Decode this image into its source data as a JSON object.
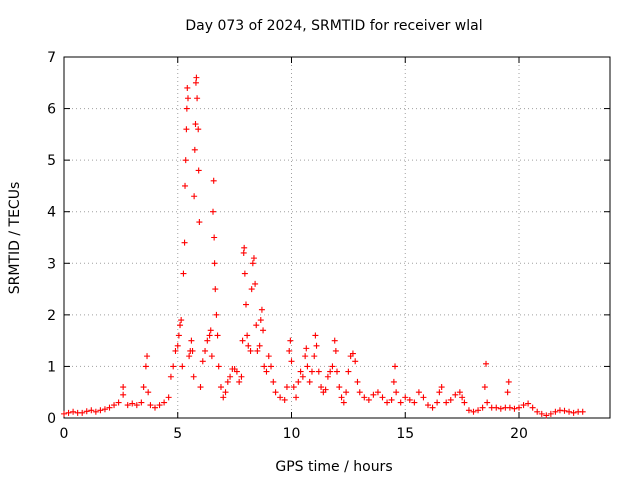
{
  "chart_data": {
    "type": "scatter",
    "title": "Day 073 of 2024, SRMTID for receiver wlal",
    "xlabel": "GPS time / hours",
    "ylabel": "SRMTID / TECUs",
    "xlim": [
      0,
      24
    ],
    "ylim": [
      0,
      7
    ],
    "xticks": [
      0,
      5,
      10,
      15,
      20
    ],
    "xtick_labels": [
      "0",
      "5",
      "10",
      "15",
      "20"
    ],
    "yticks": [
      0,
      1,
      2,
      3,
      4,
      5,
      6,
      7
    ],
    "ytick_labels": [
      "0",
      "1",
      "2",
      "3",
      "4",
      "5",
      "6",
      "7"
    ],
    "grid": true,
    "marker": "+",
    "series": [
      {
        "name": "SRMTID",
        "color": "#ff0000",
        "points": [
          [
            0.0,
            0.08
          ],
          [
            0.2,
            0.1
          ],
          [
            0.4,
            0.12
          ],
          [
            0.6,
            0.1
          ],
          [
            0.8,
            0.1
          ],
          [
            1.0,
            0.13
          ],
          [
            1.2,
            0.15
          ],
          [
            1.4,
            0.12
          ],
          [
            1.6,
            0.15
          ],
          [
            1.8,
            0.17
          ],
          [
            2.0,
            0.2
          ],
          [
            2.2,
            0.25
          ],
          [
            2.4,
            0.3
          ],
          [
            2.6,
            0.45
          ],
          [
            2.6,
            0.6
          ],
          [
            2.8,
            0.25
          ],
          [
            3.0,
            0.28
          ],
          [
            3.2,
            0.25
          ],
          [
            3.4,
            0.3
          ],
          [
            3.5,
            0.6
          ],
          [
            3.6,
            1.0
          ],
          [
            3.65,
            1.2
          ],
          [
            3.7,
            0.5
          ],
          [
            3.8,
            0.25
          ],
          [
            4.0,
            0.2
          ],
          [
            4.2,
            0.25
          ],
          [
            4.4,
            0.3
          ],
          [
            4.6,
            0.4
          ],
          [
            4.7,
            0.8
          ],
          [
            4.8,
            1.0
          ],
          [
            4.9,
            1.3
          ],
          [
            5.0,
            1.4
          ],
          [
            5.05,
            1.6
          ],
          [
            5.1,
            1.8
          ],
          [
            5.15,
            1.9
          ],
          [
            5.2,
            1.0
          ],
          [
            5.25,
            2.8
          ],
          [
            5.3,
            3.4
          ],
          [
            5.32,
            4.5
          ],
          [
            5.35,
            5.0
          ],
          [
            5.38,
            5.6
          ],
          [
            5.4,
            6.0
          ],
          [
            5.42,
            6.4
          ],
          [
            5.45,
            6.2
          ],
          [
            5.5,
            1.2
          ],
          [
            5.55,
            1.3
          ],
          [
            5.6,
            1.5
          ],
          [
            5.65,
            1.3
          ],
          [
            5.7,
            0.8
          ],
          [
            5.72,
            4.3
          ],
          [
            5.75,
            5.2
          ],
          [
            5.78,
            5.7
          ],
          [
            5.8,
            6.5
          ],
          [
            5.82,
            6.6
          ],
          [
            5.85,
            6.2
          ],
          [
            5.9,
            5.6
          ],
          [
            5.92,
            4.8
          ],
          [
            5.95,
            3.8
          ],
          [
            6.0,
            0.6
          ],
          [
            6.1,
            1.1
          ],
          [
            6.2,
            1.3
          ],
          [
            6.3,
            1.5
          ],
          [
            6.4,
            1.6
          ],
          [
            6.45,
            1.7
          ],
          [
            6.5,
            1.2
          ],
          [
            6.55,
            4.0
          ],
          [
            6.58,
            4.6
          ],
          [
            6.6,
            3.5
          ],
          [
            6.62,
            3.0
          ],
          [
            6.65,
            2.5
          ],
          [
            6.7,
            2.0
          ],
          [
            6.75,
            1.6
          ],
          [
            6.8,
            1.0
          ],
          [
            6.9,
            0.6
          ],
          [
            7.0,
            0.4
          ],
          [
            7.1,
            0.5
          ],
          [
            7.2,
            0.7
          ],
          [
            7.3,
            0.8
          ],
          [
            7.4,
            0.95
          ],
          [
            7.5,
            0.95
          ],
          [
            7.6,
            0.9
          ],
          [
            7.7,
            0.7
          ],
          [
            7.8,
            0.8
          ],
          [
            7.85,
            1.5
          ],
          [
            7.9,
            3.2
          ],
          [
            7.92,
            3.3
          ],
          [
            7.95,
            2.8
          ],
          [
            8.0,
            2.2
          ],
          [
            8.05,
            1.6
          ],
          [
            8.1,
            1.4
          ],
          [
            8.2,
            1.3
          ],
          [
            8.25,
            2.5
          ],
          [
            8.3,
            3.0
          ],
          [
            8.35,
            3.1
          ],
          [
            8.4,
            2.6
          ],
          [
            8.45,
            1.8
          ],
          [
            8.5,
            1.3
          ],
          [
            8.6,
            1.4
          ],
          [
            8.65,
            1.9
          ],
          [
            8.7,
            2.1
          ],
          [
            8.75,
            1.7
          ],
          [
            8.8,
            1.0
          ],
          [
            8.9,
            0.9
          ],
          [
            9.0,
            1.2
          ],
          [
            9.1,
            1.0
          ],
          [
            9.2,
            0.7
          ],
          [
            9.3,
            0.5
          ],
          [
            9.5,
            0.4
          ],
          [
            9.7,
            0.35
          ],
          [
            9.8,
            0.6
          ],
          [
            9.9,
            1.3
          ],
          [
            9.95,
            1.5
          ],
          [
            10.0,
            1.1
          ],
          [
            10.1,
            0.6
          ],
          [
            10.2,
            0.4
          ],
          [
            10.3,
            0.7
          ],
          [
            10.4,
            0.9
          ],
          [
            10.5,
            0.8
          ],
          [
            10.6,
            1.2
          ],
          [
            10.65,
            1.35
          ],
          [
            10.7,
            1.0
          ],
          [
            10.8,
            0.7
          ],
          [
            10.9,
            0.9
          ],
          [
            11.0,
            1.2
          ],
          [
            11.05,
            1.6
          ],
          [
            11.1,
            1.4
          ],
          [
            11.2,
            0.9
          ],
          [
            11.3,
            0.6
          ],
          [
            11.4,
            0.5
          ],
          [
            11.5,
            0.55
          ],
          [
            11.6,
            0.8
          ],
          [
            11.7,
            0.9
          ],
          [
            11.8,
            1.0
          ],
          [
            11.9,
            1.5
          ],
          [
            11.95,
            1.3
          ],
          [
            12.0,
            0.9
          ],
          [
            12.1,
            0.6
          ],
          [
            12.2,
            0.4
          ],
          [
            12.3,
            0.3
          ],
          [
            12.4,
            0.5
          ],
          [
            12.5,
            0.9
          ],
          [
            12.6,
            1.2
          ],
          [
            12.7,
            1.25
          ],
          [
            12.8,
            1.1
          ],
          [
            12.9,
            0.7
          ],
          [
            13.0,
            0.5
          ],
          [
            13.2,
            0.4
          ],
          [
            13.4,
            0.35
          ],
          [
            13.6,
            0.45
          ],
          [
            13.8,
            0.5
          ],
          [
            14.0,
            0.4
          ],
          [
            14.2,
            0.3
          ],
          [
            14.4,
            0.35
          ],
          [
            14.5,
            0.7
          ],
          [
            14.55,
            1.0
          ],
          [
            14.6,
            0.5
          ],
          [
            14.8,
            0.3
          ],
          [
            15.0,
            0.4
          ],
          [
            15.2,
            0.35
          ],
          [
            15.4,
            0.3
          ],
          [
            15.6,
            0.5
          ],
          [
            15.8,
            0.4
          ],
          [
            16.0,
            0.25
          ],
          [
            16.2,
            0.2
          ],
          [
            16.4,
            0.3
          ],
          [
            16.5,
            0.5
          ],
          [
            16.6,
            0.6
          ],
          [
            16.8,
            0.3
          ],
          [
            17.0,
            0.35
          ],
          [
            17.2,
            0.45
          ],
          [
            17.4,
            0.5
          ],
          [
            17.5,
            0.4
          ],
          [
            17.6,
            0.3
          ],
          [
            17.8,
            0.15
          ],
          [
            18.0,
            0.12
          ],
          [
            18.2,
            0.15
          ],
          [
            18.4,
            0.2
          ],
          [
            18.5,
            0.6
          ],
          [
            18.55,
            1.05
          ],
          [
            18.6,
            0.3
          ],
          [
            18.8,
            0.2
          ],
          [
            19.0,
            0.2
          ],
          [
            19.2,
            0.18
          ],
          [
            19.4,
            0.2
          ],
          [
            19.5,
            0.5
          ],
          [
            19.55,
            0.7
          ],
          [
            19.6,
            0.2
          ],
          [
            19.8,
            0.18
          ],
          [
            20.0,
            0.2
          ],
          [
            20.2,
            0.25
          ],
          [
            20.4,
            0.28
          ],
          [
            20.6,
            0.2
          ],
          [
            20.8,
            0.12
          ],
          [
            21.0,
            0.08
          ],
          [
            21.2,
            0.05
          ],
          [
            21.4,
            0.08
          ],
          [
            21.6,
            0.12
          ],
          [
            21.8,
            0.15
          ],
          [
            22.0,
            0.14
          ],
          [
            22.2,
            0.12
          ],
          [
            22.4,
            0.1
          ],
          [
            22.6,
            0.12
          ],
          [
            22.8,
            0.12
          ]
        ]
      }
    ]
  }
}
